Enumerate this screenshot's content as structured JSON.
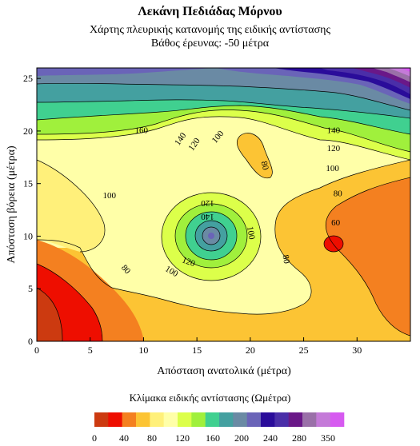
{
  "chart_data": {
    "type": "heatmap",
    "title": "Λεκάνη Πεδιάδας Μόρνου",
    "subtitle": "Χάρτης πλευρικής κατανομής της ειδικής αντίστασης",
    "subtitle2": "Βάθος έρευνας: -50 μέτρα",
    "xlabel": "Απόσταση ανατολικά (μέτρα)",
    "ylabel": "Απόσταση βόρεια (μέτρα)",
    "xlim": [
      0,
      35
    ],
    "ylim": [
      0,
      26
    ],
    "xticks": [
      "0",
      "5",
      "10",
      "15",
      "20",
      "25",
      "30"
    ],
    "yticks": [
      "0",
      "5",
      "10",
      "15",
      "20",
      "25"
    ],
    "contour_labels": [
      {
        "text": "160",
        "x": 9.8,
        "y": 20.0,
        "angle": 0
      },
      {
        "text": "140",
        "x": 13.5,
        "y": 19.2,
        "angle": -55
      },
      {
        "text": "120",
        "x": 14.8,
        "y": 18.7,
        "angle": -55
      },
      {
        "text": "100",
        "x": 17.0,
        "y": 19.4,
        "angle": -50
      },
      {
        "text": "80",
        "x": 21.3,
        "y": 16.7,
        "angle": 75
      },
      {
        "text": "100",
        "x": 6.8,
        "y": 13.8,
        "angle": 0
      },
      {
        "text": "120",
        "x": 16.0,
        "y": 13.2,
        "angle": 180
      },
      {
        "text": "140",
        "x": 16.0,
        "y": 11.9,
        "angle": 180
      },
      {
        "text": "100",
        "x": 20.0,
        "y": 10.3,
        "angle": 80
      },
      {
        "text": "120",
        "x": 14.2,
        "y": 7.5,
        "angle": 20
      },
      {
        "text": "100",
        "x": 12.6,
        "y": 6.6,
        "angle": 30
      },
      {
        "text": "80",
        "x": 8.3,
        "y": 6.8,
        "angle": 50
      },
      {
        "text": "80",
        "x": 23.3,
        "y": 7.8,
        "angle": 80
      },
      {
        "text": "140",
        "x": 27.8,
        "y": 20.0,
        "angle": 0
      },
      {
        "text": "120",
        "x": 27.8,
        "y": 18.3,
        "angle": 0
      },
      {
        "text": "100",
        "x": 27.7,
        "y": 16.4,
        "angle": 0
      },
      {
        "text": "80",
        "x": 28.2,
        "y": 14.0,
        "angle": 0
      },
      {
        "text": "60",
        "x": 28.0,
        "y": 11.2,
        "angle": 0
      }
    ],
    "scale": {
      "title": "Κλίμακα ειδικής αντίστασης (Ωμέτρα)",
      "colors": [
        "#cc3a10",
        "#ee0e00",
        "#f48020",
        "#fcc434",
        "#fff07a",
        "#ffffa8",
        "#dcff4a",
        "#a0f03c",
        "#40d090",
        "#44a0a0",
        "#6a8aa4",
        "#6a64b8",
        "#2a0c9a",
        "#4a2ea8",
        "#6a1888",
        "#9a70a8",
        "#c47ad8",
        "#d65af0"
      ],
      "labels": [
        "0",
        "40",
        "80",
        "120",
        "160",
        "200",
        "240",
        "280",
        "350"
      ]
    }
  }
}
